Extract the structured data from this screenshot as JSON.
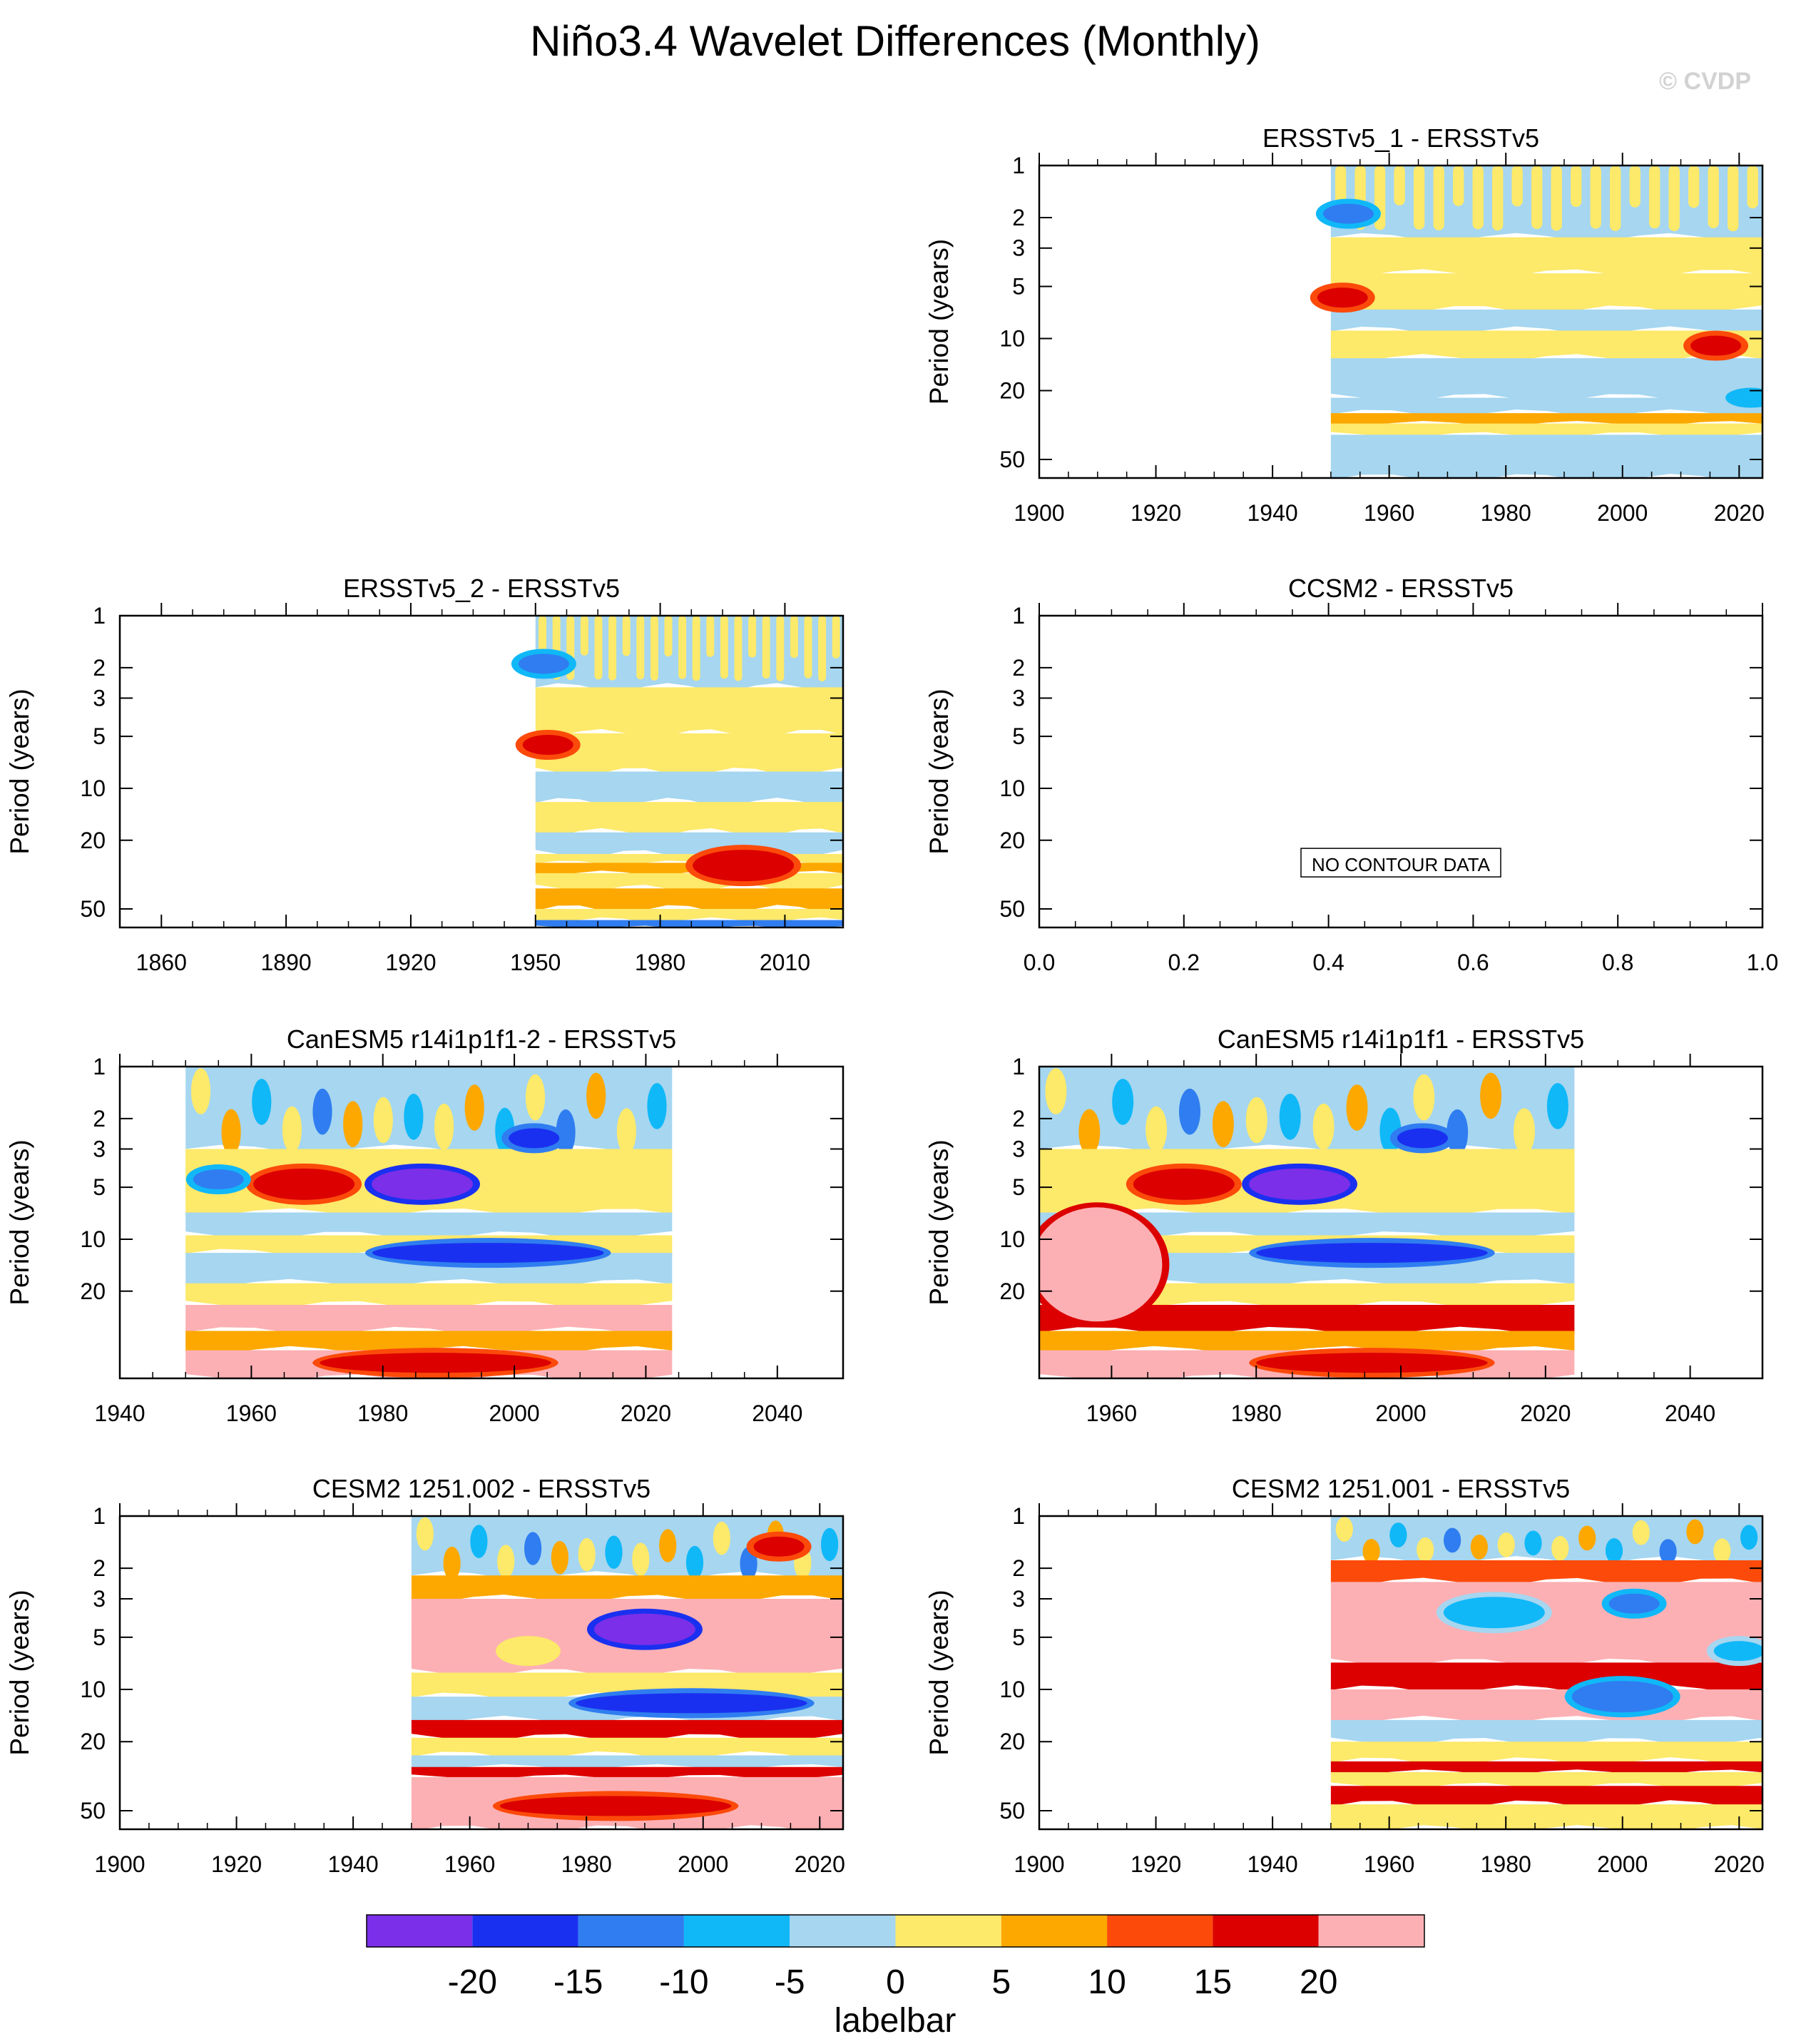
{
  "figure": {
    "title": "Niño3.4 Wavelet Differences (Monthly)",
    "watermark": "© CVDP"
  },
  "colors": {
    "levels": [
      "#7b2fe8",
      "#1a30f0",
      "#2f7df0",
      "#10b8f8",
      "#a6d6f0",
      "#fde96a",
      "#fca800",
      "#fc4a0a",
      "#dc0000",
      "#fcb0b4"
    ],
    "watermark": "#d0d0d0"
  },
  "colorbar": {
    "label": "labelbar",
    "ticks": [
      "-20",
      "-15",
      "-10",
      "-5",
      "0",
      "5",
      "10",
      "15",
      "20"
    ]
  },
  "chart_data": [
    {
      "type": "heatmap",
      "title": "ERSSTv5_1 - ERSSTv5",
      "ylabel": "Period (years)",
      "xlim": [
        1900,
        2024
      ],
      "ylim": [
        1,
        64
      ],
      "yscale": "log",
      "yreversed": true,
      "xticks": [
        "1900",
        "1920",
        "1940",
        "1960",
        "1980",
        "2000",
        "2020"
      ],
      "yticks": [
        "1",
        "2",
        "3",
        "5",
        "10",
        "20",
        "50"
      ],
      "data_x_range": [
        1950,
        2024
      ],
      "bands": [
        {
          "y": [
            1,
            2.6
          ],
          "level": 4,
          "pattern": "vertical-streaks",
          "streak_level": 5
        },
        {
          "y": [
            2.6,
            4.2
          ],
          "level": 5
        },
        {
          "y": [
            4.2,
            6.8
          ],
          "level": 5
        },
        {
          "y": [
            6.8,
            9
          ],
          "level": 4
        },
        {
          "y": [
            9,
            13
          ],
          "level": 5
        },
        {
          "y": [
            13,
            22
          ],
          "level": 4
        },
        {
          "y": [
            22,
            27
          ],
          "level": 4
        },
        {
          "y": [
            27,
            31
          ],
          "level": 6
        },
        {
          "y": [
            31,
            36
          ],
          "level": 5
        },
        {
          "y": [
            36,
            64
          ],
          "level": 4
        }
      ],
      "features": [
        {
          "x": 1952,
          "y": 5.8,
          "level": 8,
          "size": "small"
        },
        {
          "x": 2016,
          "y": 11,
          "level": 8,
          "size": "small"
        },
        {
          "x": 2022,
          "y": 22,
          "level": 3,
          "size": "small"
        },
        {
          "x": 1953,
          "y": 1.9,
          "level": 2,
          "size": "small"
        }
      ]
    },
    {
      "type": "heatmap",
      "title": "ERSSTv5_2 - ERSSTv5",
      "ylabel": "Period (years)",
      "xlim": [
        1850,
        2024
      ],
      "ylim": [
        1,
        64
      ],
      "yscale": "log",
      "yreversed": true,
      "xticks": [
        "1860",
        "1890",
        "1920",
        "1950",
        "1980",
        "2010"
      ],
      "yticks": [
        "1",
        "2",
        "3",
        "5",
        "10",
        "20",
        "50"
      ],
      "data_x_range": [
        1950,
        2024
      ],
      "bands": [
        {
          "y": [
            1,
            2.6
          ],
          "level": 4,
          "pattern": "vertical-streaks",
          "streak_level": 5
        },
        {
          "y": [
            2.6,
            4.8
          ],
          "level": 5
        },
        {
          "y": [
            4.8,
            8
          ],
          "level": 5
        },
        {
          "y": [
            8,
            12
          ],
          "level": 4
        },
        {
          "y": [
            12,
            18
          ],
          "level": 5
        },
        {
          "y": [
            18,
            24
          ],
          "level": 4
        },
        {
          "y": [
            24,
            27
          ],
          "level": 5
        },
        {
          "y": [
            27,
            31
          ],
          "level": 6
        },
        {
          "y": [
            31,
            38
          ],
          "level": 5
        },
        {
          "y": [
            38,
            50
          ],
          "level": 6
        },
        {
          "y": [
            50,
            58
          ],
          "level": 5
        },
        {
          "y": [
            58,
            64
          ],
          "level": 2
        }
      ],
      "features": [
        {
          "x": 2000,
          "y": 28,
          "level": 8,
          "size": "medium"
        },
        {
          "x": 1953,
          "y": 5.6,
          "level": 8,
          "size": "small"
        },
        {
          "x": 1952,
          "y": 1.9,
          "level": 2,
          "size": "small"
        }
      ]
    },
    {
      "type": "heatmap",
      "title": "CCSM2 - ERSSTv5",
      "ylabel": "Period (years)",
      "xlim": [
        0,
        1
      ],
      "ylim": [
        1,
        64
      ],
      "yscale": "log",
      "yreversed": true,
      "xticks": [
        "0.0",
        "0.2",
        "0.4",
        "0.6",
        "0.8",
        "1.0"
      ],
      "yticks": [
        "1",
        "2",
        "3",
        "5",
        "10",
        "20",
        "50"
      ],
      "message": "NO CONTOUR DATA",
      "bands": [],
      "features": []
    },
    {
      "type": "heatmap",
      "title": "CanESM5 r14i1p1f1-2 - ERSSTv5",
      "ylabel": "Period (years)",
      "xlim": [
        1940,
        2050
      ],
      "ylim": [
        1,
        64
      ],
      "yscale": "log",
      "yreversed": true,
      "xticks": [
        "1940",
        "1960",
        "1980",
        "2000",
        "2020",
        "2040"
      ],
      "yticks": [
        "1",
        "2",
        "3",
        "5",
        "10",
        "20"
      ],
      "data_x_range": [
        1950,
        2024
      ],
      "bands": [
        {
          "y": [
            1,
            3
          ],
          "level": 4,
          "pattern": "mixed-blobs"
        },
        {
          "y": [
            3,
            7
          ],
          "level": 5
        },
        {
          "y": [
            7,
            9.5
          ],
          "level": 4
        },
        {
          "y": [
            9.5,
            12
          ],
          "level": 5
        },
        {
          "y": [
            12,
            18
          ],
          "level": 4
        },
        {
          "y": [
            18,
            24
          ],
          "level": 5
        },
        {
          "y": [
            24,
            34
          ],
          "level": 9
        },
        {
          "y": [
            34,
            44
          ],
          "level": 6
        },
        {
          "y": [
            44,
            64
          ],
          "level": 9
        }
      ],
      "features": [
        {
          "x": 1986,
          "y": 4.8,
          "level": 0,
          "size": "medium"
        },
        {
          "x": 1968,
          "y": 4.8,
          "level": 8,
          "size": "medium"
        },
        {
          "x": 1996,
          "y": 12,
          "level": 1,
          "size": "long"
        },
        {
          "x": 1955,
          "y": 4.5,
          "level": 2,
          "size": "small"
        },
        {
          "x": 2003,
          "y": 2.6,
          "level": 1,
          "size": "small"
        },
        {
          "x": 1988,
          "y": 52,
          "level": 8,
          "size": "long"
        }
      ]
    },
    {
      "type": "heatmap",
      "title": "CanESM5 r14i1p1f1 - ERSSTv5",
      "ylabel": "Period (years)",
      "xlim": [
        1950,
        2050
      ],
      "ylim": [
        1,
        64
      ],
      "yscale": "log",
      "yreversed": true,
      "xticks": [
        "1960",
        "1980",
        "2000",
        "2020",
        "2040"
      ],
      "yticks": [
        "1",
        "2",
        "3",
        "5",
        "10",
        "20"
      ],
      "data_x_range": [
        1950,
        2024
      ],
      "bands": [
        {
          "y": [
            1,
            3
          ],
          "level": 4,
          "pattern": "mixed-blobs"
        },
        {
          "y": [
            3,
            7
          ],
          "level": 5
        },
        {
          "y": [
            7,
            9.5
          ],
          "level": 4
        },
        {
          "y": [
            9.5,
            12
          ],
          "level": 5
        },
        {
          "y": [
            12,
            18
          ],
          "level": 4
        },
        {
          "y": [
            18,
            24
          ],
          "level": 5
        },
        {
          "y": [
            24,
            34
          ],
          "level": 8
        },
        {
          "y": [
            34,
            44
          ],
          "level": 6
        },
        {
          "y": [
            44,
            64
          ],
          "level": 9
        }
      ],
      "features": [
        {
          "x": 1958,
          "y": 14,
          "level": 9,
          "size": "big"
        },
        {
          "x": 1986,
          "y": 4.8,
          "level": 0,
          "size": "medium"
        },
        {
          "x": 1970,
          "y": 4.8,
          "level": 8,
          "size": "medium"
        },
        {
          "x": 1996,
          "y": 12,
          "level": 1,
          "size": "long"
        },
        {
          "x": 2003,
          "y": 2.6,
          "level": 1,
          "size": "small"
        },
        {
          "x": 1996,
          "y": 52,
          "level": 8,
          "size": "long"
        }
      ]
    },
    {
      "type": "heatmap",
      "title": "CESM2 1251.002 - ERSSTv5",
      "ylabel": "Period (years)",
      "xlim": [
        1900,
        2024
      ],
      "ylim": [
        1,
        64
      ],
      "yscale": "log",
      "yreversed": true,
      "xticks": [
        "1900",
        "1920",
        "1940",
        "1960",
        "1980",
        "2000",
        "2020"
      ],
      "yticks": [
        "1",
        "2",
        "3",
        "5",
        "10",
        "20",
        "50"
      ],
      "data_x_range": [
        1950,
        2024
      ],
      "bands": [
        {
          "y": [
            1,
            2.2
          ],
          "level": 4,
          "pattern": "mixed-blobs"
        },
        {
          "y": [
            2.2,
            3
          ],
          "level": 6
        },
        {
          "y": [
            3,
            8
          ],
          "level": 9
        },
        {
          "y": [
            8,
            11
          ],
          "level": 5
        },
        {
          "y": [
            11,
            15
          ],
          "level": 4
        },
        {
          "y": [
            15,
            19
          ],
          "level": 8
        },
        {
          "y": [
            19,
            24
          ],
          "level": 5
        },
        {
          "y": [
            24,
            28
          ],
          "level": 4
        },
        {
          "y": [
            28,
            32
          ],
          "level": 8
        },
        {
          "y": [
            32,
            64
          ],
          "level": 9
        }
      ],
      "features": [
        {
          "x": 1990,
          "y": 4.5,
          "level": 0,
          "size": "medium"
        },
        {
          "x": 1998,
          "y": 12,
          "level": 1,
          "size": "long"
        },
        {
          "x": 1985,
          "y": 47,
          "level": 8,
          "size": "long"
        },
        {
          "x": 1970,
          "y": 6,
          "level": 5,
          "size": "small"
        },
        {
          "x": 2013,
          "y": 1.5,
          "level": 8,
          "size": "small"
        }
      ]
    },
    {
      "type": "heatmap",
      "title": "CESM2 1251.001 - ERSSTv5",
      "ylabel": "Period (years)",
      "xlim": [
        1900,
        2024
      ],
      "ylim": [
        1,
        64
      ],
      "yscale": "log",
      "yreversed": true,
      "xticks": [
        "1900",
        "1920",
        "1940",
        "1960",
        "1980",
        "2000",
        "2020"
      ],
      "yticks": [
        "1",
        "2",
        "3",
        "5",
        "10",
        "20",
        "50"
      ],
      "data_x_range": [
        1950,
        2024
      ],
      "bands": [
        {
          "y": [
            1,
            1.8
          ],
          "level": 4,
          "pattern": "mixed-blobs"
        },
        {
          "y": [
            1.8,
            2.4
          ],
          "level": 7
        },
        {
          "y": [
            2.4,
            7
          ],
          "level": 9
        },
        {
          "y": [
            7,
            10
          ],
          "level": 8
        },
        {
          "y": [
            10,
            15
          ],
          "level": 9
        },
        {
          "y": [
            15,
            20
          ],
          "level": 4
        },
        {
          "y": [
            20,
            26
          ],
          "level": 5
        },
        {
          "y": [
            26,
            30
          ],
          "level": 8
        },
        {
          "y": [
            30,
            36
          ],
          "level": 5
        },
        {
          "y": [
            36,
            46
          ],
          "level": 8
        },
        {
          "y": [
            46,
            64
          ],
          "level": 5
        }
      ],
      "features": [
        {
          "x": 2000,
          "y": 11,
          "level": 2,
          "size": "medium"
        },
        {
          "x": 1978,
          "y": 3.6,
          "level": 3,
          "size": "medium"
        },
        {
          "x": 2002,
          "y": 3.2,
          "level": 2,
          "size": "small"
        },
        {
          "x": 2020,
          "y": 6,
          "level": 3,
          "size": "small"
        }
      ]
    }
  ]
}
